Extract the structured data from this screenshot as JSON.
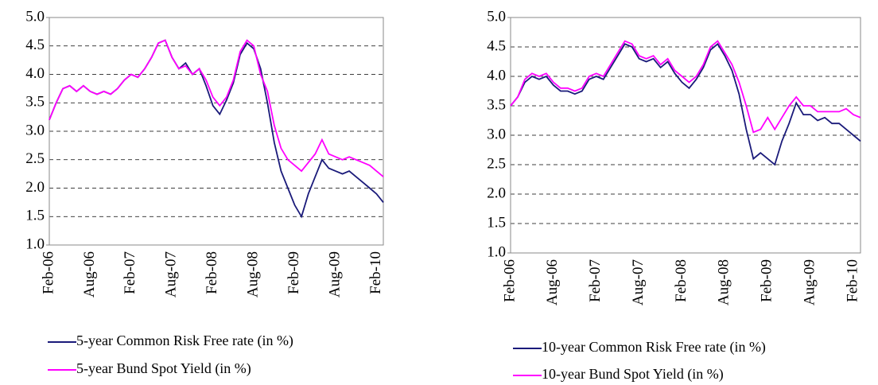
{
  "chart_data": [
    {
      "type": "line",
      "categories": [
        "Feb-06",
        null,
        null,
        null,
        null,
        null,
        "Aug-06",
        null,
        null,
        null,
        null,
        null,
        "Feb-07",
        null,
        null,
        null,
        null,
        null,
        "Aug-07",
        null,
        null,
        null,
        null,
        null,
        "Feb-08",
        null,
        null,
        null,
        null,
        null,
        "Aug-08",
        null,
        null,
        null,
        null,
        null,
        "Feb-09",
        null,
        null,
        null,
        null,
        null,
        "Aug-09",
        null,
        null,
        null,
        null,
        null,
        "Feb-10",
        null
      ],
      "ylim": [
        1,
        5
      ],
      "yticks": [
        {
          "value": 1,
          "label": "1.0"
        },
        {
          "value": 1.5,
          "label": "1.5"
        },
        {
          "value": 2,
          "label": "2.0"
        },
        {
          "value": 2.5,
          "label": "2.5"
        },
        {
          "value": 3,
          "label": "3.0"
        },
        {
          "value": 3.5,
          "label": "3.5"
        },
        {
          "value": 4,
          "label": "4.0"
        },
        {
          "value": 4.5,
          "label": "4.5"
        },
        {
          "value": 5,
          "label": "5.0"
        }
      ],
      "grid": true,
      "series": [
        {
          "name": "5-year Common Risk Free rate (in %)",
          "color": "#1a1a7a",
          "values": [
            3.2,
            3.5,
            3.75,
            3.8,
            3.7,
            3.8,
            3.7,
            3.65,
            3.7,
            3.65,
            3.75,
            3.9,
            4.0,
            3.95,
            4.1,
            4.3,
            4.55,
            4.6,
            4.3,
            4.1,
            4.2,
            4.0,
            4.1,
            3.8,
            3.45,
            3.3,
            3.55,
            3.85,
            4.35,
            4.55,
            4.45,
            4.1,
            3.5,
            2.8,
            2.3,
            2.0,
            1.7,
            1.5,
            1.9,
            2.2,
            2.5,
            2.35,
            2.3,
            2.25,
            2.3,
            2.2,
            2.1,
            2.0,
            1.9,
            1.75
          ]
        },
        {
          "name": "5-year Bund Spot Yield (in %)",
          "color": "#ff00ff",
          "values": [
            3.2,
            3.5,
            3.75,
            3.8,
            3.7,
            3.8,
            3.7,
            3.65,
            3.7,
            3.65,
            3.75,
            3.9,
            4.0,
            3.95,
            4.1,
            4.3,
            4.55,
            4.6,
            4.3,
            4.1,
            4.15,
            4.0,
            4.1,
            3.9,
            3.6,
            3.45,
            3.6,
            3.9,
            4.4,
            4.6,
            4.5,
            4.0,
            3.7,
            3.1,
            2.7,
            2.5,
            2.4,
            2.3,
            2.45,
            2.6,
            2.85,
            2.6,
            2.55,
            2.5,
            2.55,
            2.5,
            2.45,
            2.4,
            2.3,
            2.2
          ]
        }
      ]
    },
    {
      "type": "line",
      "categories": [
        "Feb-06",
        null,
        null,
        null,
        null,
        null,
        "Aug-06",
        null,
        null,
        null,
        null,
        null,
        "Feb-07",
        null,
        null,
        null,
        null,
        null,
        "Aug-07",
        null,
        null,
        null,
        null,
        null,
        "Feb-08",
        null,
        null,
        null,
        null,
        null,
        "Aug-08",
        null,
        null,
        null,
        null,
        null,
        "Feb-09",
        null,
        null,
        null,
        null,
        null,
        "Aug-09",
        null,
        null,
        null,
        null,
        null,
        "Feb-10",
        null
      ],
      "ylim": [
        1,
        5
      ],
      "yticks": [
        {
          "value": 1,
          "label": "1.0"
        },
        {
          "value": 1.5,
          "label": "1.5"
        },
        {
          "value": 2,
          "label": "2.0"
        },
        {
          "value": 2.5,
          "label": "2.5"
        },
        {
          "value": 3,
          "label": "3.0"
        },
        {
          "value": 3.5,
          "label": "3.5"
        },
        {
          "value": 4,
          "label": "4.0"
        },
        {
          "value": 4.5,
          "label": "4.5"
        },
        {
          "value": 5,
          "label": "5.0"
        }
      ],
      "grid": true,
      "series": [
        {
          "name": "10-year Common Risk Free rate (in %)",
          "color": "#1a1a7a",
          "values": [
            3.5,
            3.65,
            3.9,
            4.0,
            3.95,
            4.0,
            3.85,
            3.75,
            3.75,
            3.7,
            3.75,
            3.95,
            4.0,
            3.95,
            4.15,
            4.35,
            4.55,
            4.5,
            4.3,
            4.25,
            4.3,
            4.15,
            4.25,
            4.05,
            3.9,
            3.8,
            3.95,
            4.15,
            4.45,
            4.55,
            4.35,
            4.1,
            3.7,
            3.1,
            2.6,
            2.7,
            2.6,
            2.5,
            2.9,
            3.2,
            3.55,
            3.35,
            3.35,
            3.25,
            3.3,
            3.2,
            3.2,
            3.1,
            3.0,
            2.9
          ]
        },
        {
          "name": "10-year Bund Spot Yield (in %)",
          "color": "#ff00ff",
          "values": [
            3.5,
            3.65,
            3.95,
            4.05,
            4.0,
            4.05,
            3.9,
            3.8,
            3.8,
            3.75,
            3.8,
            4.0,
            4.05,
            4.0,
            4.2,
            4.4,
            4.6,
            4.55,
            4.35,
            4.3,
            4.35,
            4.2,
            4.3,
            4.1,
            4.0,
            3.9,
            4.0,
            4.2,
            4.5,
            4.6,
            4.4,
            4.2,
            3.9,
            3.5,
            3.05,
            3.1,
            3.3,
            3.1,
            3.3,
            3.5,
            3.65,
            3.5,
            3.5,
            3.4,
            3.4,
            3.4,
            3.4,
            3.45,
            3.35,
            3.3
          ]
        }
      ]
    }
  ]
}
